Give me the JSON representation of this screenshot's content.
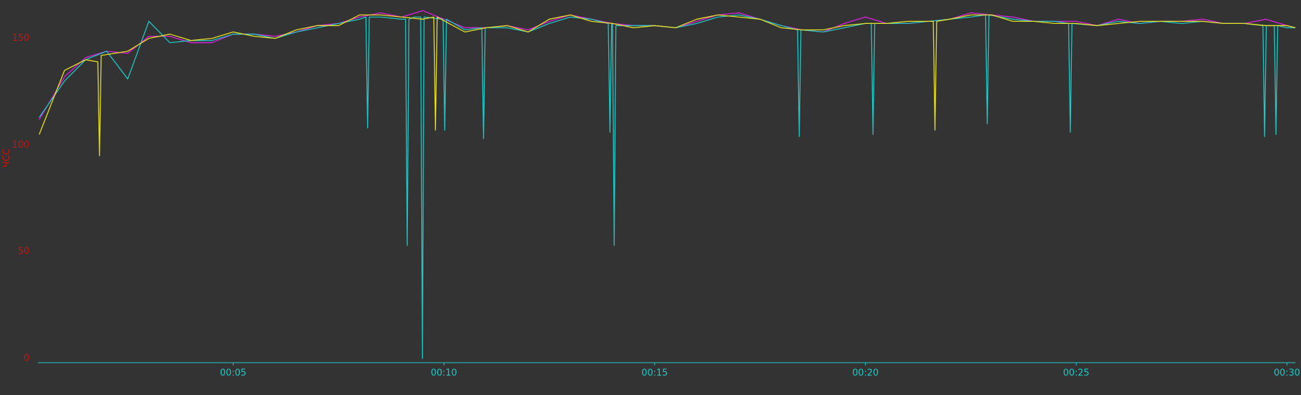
{
  "chart_data": {
    "type": "line",
    "y_label": "ЧСС",
    "xlim": [
      0.37,
      30.2
    ],
    "ylim": [
      -2,
      168
    ],
    "xticks": [
      {
        "value": 5,
        "label": "00:05"
      },
      {
        "value": 10,
        "label": "00:10"
      },
      {
        "value": 15,
        "label": "00:15"
      },
      {
        "value": 20,
        "label": "00:20"
      },
      {
        "value": 25,
        "label": "00:25"
      },
      {
        "value": 30,
        "label": "00:30"
      }
    ],
    "yticks": [
      0,
      50,
      100,
      150
    ],
    "grid": false,
    "series": [
      {
        "color": "#e020e0",
        "x": [
          0.4,
          1,
          1.5,
          2,
          2.5,
          3,
          3.5,
          4,
          4.5,
          5,
          5.5,
          6,
          6.5,
          7,
          7.5,
          8,
          8.5,
          9,
          9.5,
          10,
          10.5,
          11,
          11.5,
          12,
          12.5,
          13,
          13.5,
          14,
          14.5,
          15,
          15.5,
          16,
          16.5,
          17,
          17.5,
          18,
          18.5,
          19,
          19.5,
          20,
          20.5,
          21,
          21.5,
          22,
          22.5,
          23,
          23.5,
          24,
          24.5,
          25,
          25.5,
          26,
          26.5,
          27,
          27.5,
          28,
          28.5,
          29,
          29.5,
          30,
          30.2
        ],
        "values": [
          112,
          132,
          141,
          144,
          143,
          151,
          151,
          148,
          148,
          152,
          152,
          151,
          153,
          156,
          157,
          160,
          162,
          160,
          163,
          159,
          155,
          155,
          156,
          154,
          158,
          161,
          159,
          157,
          156,
          156,
          155,
          158,
          161,
          162,
          159,
          156,
          154,
          153,
          157,
          160,
          157,
          157,
          158,
          159,
          162,
          161,
          160,
          158,
          158,
          158,
          156,
          159,
          157,
          158,
          158,
          159,
          157,
          157,
          159,
          156,
          155
        ]
      },
      {
        "color": "#20c8c8",
        "x": [
          0.4,
          1,
          1.5,
          2,
          2.5,
          3,
          3.5,
          4,
          4.5,
          5,
          5.5,
          6,
          6.5,
          7,
          7.5,
          8,
          8.15,
          8.19,
          8.23,
          8.5,
          9,
          9.09,
          9.13,
          9.17,
          9.3,
          9.45,
          9.49,
          9.53,
          9.98,
          10.02,
          10.06,
          10.5,
          10.9,
          10.94,
          10.98,
          11.5,
          12,
          12.5,
          13,
          13.5,
          13.9,
          13.94,
          13.98,
          14.0,
          14.04,
          14.08,
          14.5,
          15,
          15.5,
          16,
          16.5,
          17,
          17.5,
          18,
          18.39,
          18.43,
          18.47,
          19,
          19.5,
          20,
          20.14,
          20.18,
          20.22,
          20.5,
          21,
          21.5,
          22,
          22.5,
          22.85,
          22.89,
          22.93,
          23.5,
          24,
          24.5,
          24.82,
          24.86,
          24.9,
          25.5,
          26,
          26.5,
          27,
          27.5,
          28,
          28.5,
          29,
          29.43,
          29.47,
          29.51,
          29.7,
          29.74,
          29.78,
          30,
          30.2
        ],
        "values": [
          113,
          130,
          140,
          144,
          131,
          158,
          148,
          149,
          149,
          152,
          152,
          150,
          153,
          155,
          157,
          159,
          160,
          108,
          160,
          160,
          159,
          159,
          53,
          159,
          160,
          160,
          0,
          160,
          159,
          107,
          159,
          154,
          155,
          103,
          155,
          155,
          153,
          157,
          160,
          159,
          157,
          106,
          157,
          157,
          53,
          156,
          156,
          156,
          155,
          157,
          160,
          161,
          159,
          156,
          154,
          104,
          154,
          153,
          155,
          157,
          157,
          105,
          157,
          157,
          157,
          158,
          159,
          160,
          161,
          110,
          161,
          159,
          158,
          158,
          157,
          106,
          157,
          156,
          158,
          157,
          158,
          157,
          158,
          157,
          157,
          156,
          104,
          156,
          156,
          105,
          156,
          155,
          155
        ]
      },
      {
        "color": "#e8e020",
        "x": [
          0.4,
          1,
          1.5,
          1.79,
          1.83,
          1.87,
          2.5,
          3,
          3.5,
          4,
          4.5,
          5,
          5.5,
          6,
          6.5,
          7,
          7.5,
          8,
          8.5,
          9,
          9.5,
          9.76,
          9.8,
          9.84,
          10.5,
          11,
          11.5,
          12,
          12.5,
          13,
          13.5,
          14,
          14.5,
          15,
          15.5,
          16,
          16.5,
          17,
          17.5,
          18,
          18.5,
          19,
          19.5,
          20,
          20.5,
          21,
          21.5,
          21.61,
          21.65,
          21.69,
          22,
          22.5,
          23,
          23.5,
          24,
          24.5,
          25,
          25.5,
          26,
          26.5,
          27,
          27.5,
          28,
          28.5,
          29,
          29.5,
          30,
          30.2
        ],
        "values": [
          105,
          135,
          140,
          139,
          95,
          142,
          144,
          150,
          152,
          149,
          150,
          153,
          151,
          150,
          154,
          156,
          156,
          161,
          161,
          160,
          159,
          160,
          107,
          160,
          153,
          155,
          156,
          153,
          159,
          161,
          158,
          157,
          155,
          156,
          155,
          159,
          161,
          160,
          159,
          155,
          154,
          154,
          156,
          157,
          157,
          158,
          158,
          158,
          107,
          158,
          159,
          161,
          161,
          158,
          158,
          157,
          157,
          156,
          157,
          158,
          158,
          158,
          158,
          157,
          157,
          156,
          156,
          155
        ]
      }
    ]
  }
}
